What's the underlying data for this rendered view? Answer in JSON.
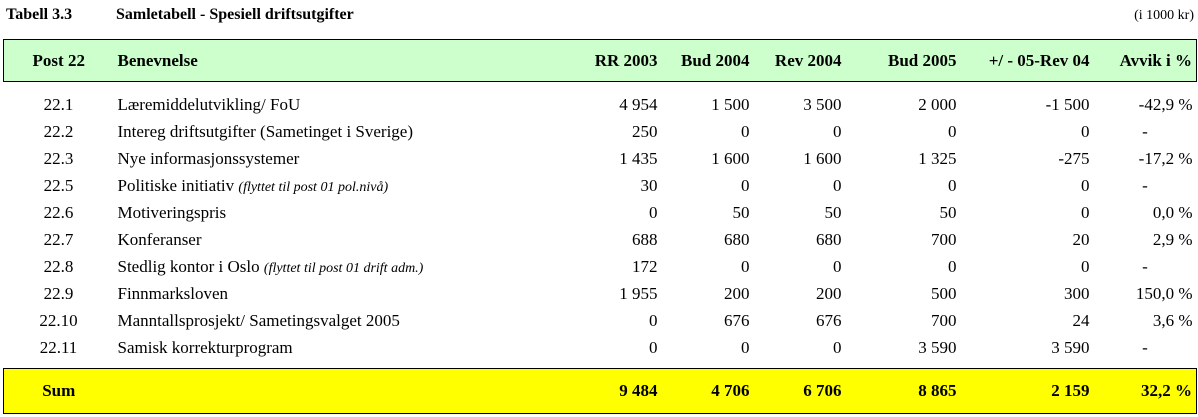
{
  "caption": {
    "number": "Tabell 3.3",
    "title": "Samletabell - Spesiell driftsutgifter",
    "unit": "(i 1000 kr)"
  },
  "table": {
    "headers": [
      "Post 22",
      "Benevnelse",
      "RR 2003",
      "Bud 2004",
      "Rev 2004",
      "Bud 2005",
      "+/ - 05-Rev 04",
      "Avvik i %"
    ],
    "rows": [
      {
        "post": "22.1",
        "name": "Læremiddelutvikling/ FoU",
        "note": "",
        "rr2003": "4 954",
        "bud2004": "1 500",
        "rev2004": "3 500",
        "bud2005": "2 000",
        "diff": "-1 500",
        "pct": "-42,9 %"
      },
      {
        "post": "22.2",
        "name": "Intereg driftsutgifter (Sametinget i Sverige)",
        "note": "",
        "rr2003": "250",
        "bud2004": "0",
        "rev2004": "0",
        "bud2005": "0",
        "diff": "0",
        "pct": "-"
      },
      {
        "post": "22.3",
        "name": "Nye informasjonssystemer",
        "note": "",
        "rr2003": "1 435",
        "bud2004": "1 600",
        "rev2004": "1 600",
        "bud2005": "1 325",
        "diff": "-275",
        "pct": "-17,2 %"
      },
      {
        "post": "22.5",
        "name": "Politiske initiativ",
        "note": "(flyttet til post 01 pol.nivå)",
        "rr2003": "30",
        "bud2004": "0",
        "rev2004": "0",
        "bud2005": "0",
        "diff": "0",
        "pct": "-"
      },
      {
        "post": "22.6",
        "name": "Motiveringspris",
        "note": "",
        "rr2003": "0",
        "bud2004": "50",
        "rev2004": "50",
        "bud2005": "50",
        "diff": "0",
        "pct": "0,0 %"
      },
      {
        "post": "22.7",
        "name": "Konferanser",
        "note": "",
        "rr2003": "688",
        "bud2004": "680",
        "rev2004": "680",
        "bud2005": "700",
        "diff": "20",
        "pct": "2,9 %"
      },
      {
        "post": "22.8",
        "name": "Stedlig kontor i Oslo",
        "note": "(flyttet til post 01 drift adm.)",
        "rr2003": "172",
        "bud2004": "0",
        "rev2004": "0",
        "bud2005": "0",
        "diff": "0",
        "pct": "-"
      },
      {
        "post": "22.9",
        "name": "Finnmarksloven",
        "note": "",
        "rr2003": "1 955",
        "bud2004": "200",
        "rev2004": "200",
        "bud2005": "500",
        "diff": "300",
        "pct": "150,0 %"
      },
      {
        "post": "22.10",
        "name": "Manntallsprosjekt/ Sametingsvalget 2005",
        "note": "",
        "rr2003": "0",
        "bud2004": "676",
        "rev2004": "676",
        "bud2005": "700",
        "diff": "24",
        "pct": "3,6 %"
      },
      {
        "post": "22.11",
        "name": "Samisk korrekturprogram",
        "note": "",
        "rr2003": "0",
        "bud2004": "0",
        "rev2004": "0",
        "bud2005": "3 590",
        "diff": "3 590",
        "pct": "-"
      }
    ],
    "sum": {
      "label": "Sum",
      "rr2003": "9 484",
      "bud2004": "4 706",
      "rev2004": "6 706",
      "bud2005": "8 865",
      "diff": "2 159",
      "pct": "32,2 %"
    }
  },
  "colors": {
    "header_bg": "#ccffcc",
    "sum_bg": "#ffff00"
  }
}
